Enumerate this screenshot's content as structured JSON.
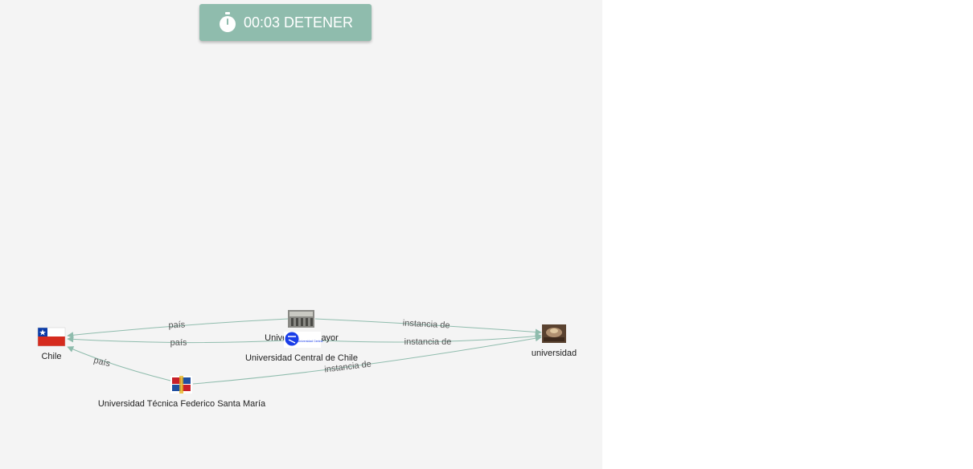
{
  "toolbar": {
    "timer": "00:03",
    "stop_label": "DETENER"
  },
  "colors": {
    "accent": "#8fbcad",
    "panel_bg": "#f4f4f4"
  },
  "graph": {
    "nodes": {
      "chile": "Chile",
      "universidad": "universidad",
      "mayor": "Universidad Mayor",
      "central": "Universidad Central de Chile",
      "utfsm": "Universidad Técnica Federico Santa María"
    },
    "edges": {
      "mayor_pais": "país",
      "central_pais": "país",
      "utfsm_pais": "país",
      "mayor_instancia": "instancia de",
      "central_instancia": "instancia de",
      "utfsm_instancia": "instancia de"
    },
    "central_logo_text": "Universidad Central"
  }
}
